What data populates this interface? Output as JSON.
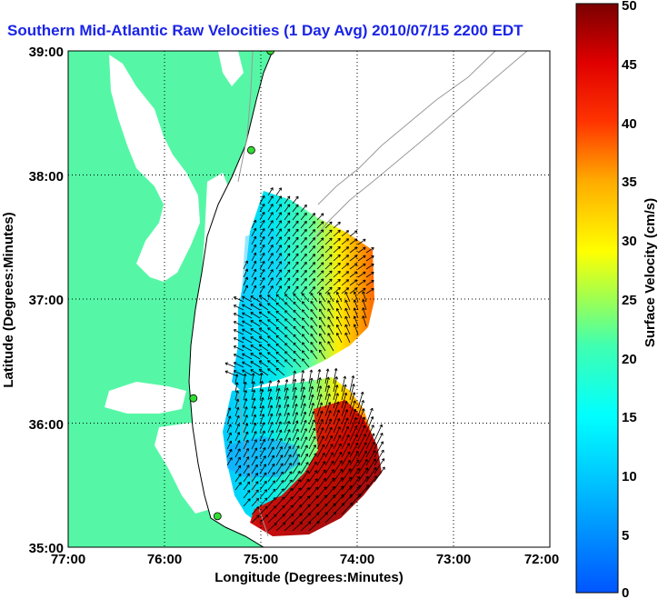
{
  "title": "Southern Mid-Atlantic Raw Velocities (1 Day Avg) 2010/07/15 2200 EDT",
  "xlabel": "Longitude (Degrees:Minutes)",
  "ylabel": "Latitude (Degrees:Minutes)",
  "x_ticks": [
    "77:00",
    "76:00",
    "75:00",
    "74:00",
    "73:00",
    "72:00"
  ],
  "y_ticks": [
    "39:00",
    "38:00",
    "37:00",
    "36:00",
    "35:00"
  ],
  "colorbar": {
    "label": "Surface Velocity (cm/s)",
    "ticks": [
      "0",
      "5",
      "10",
      "15",
      "20",
      "25",
      "30",
      "35",
      "40",
      "45",
      "50"
    ]
  },
  "colors": {
    "land": "#55f7a6",
    "title": "#1a24e6",
    "station": "#33dd33",
    "bathymetry": "#9a9a9a"
  },
  "chart_data": {
    "type": "map",
    "x_range_deg_lon": [
      -77,
      -72
    ],
    "y_range_deg_lat": [
      35,
      39
    ],
    "velocity_range_cm_s": [
      0,
      50
    ],
    "colormap": "jet",
    "grid": "dotted",
    "stations": [
      {
        "lon": -74.9,
        "lat": 39.0
      },
      {
        "lon": -75.1,
        "lat": 38.2
      },
      {
        "lon": -75.7,
        "lat": 36.2
      },
      {
        "lon": -75.45,
        "lat": 35.25
      }
    ]
  }
}
